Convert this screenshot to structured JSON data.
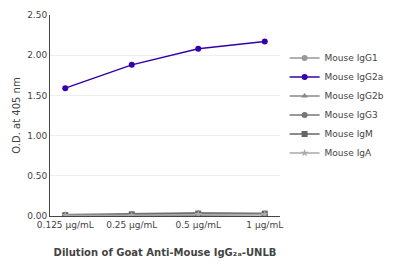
{
  "chart_data": {
    "type": "line",
    "xlabel": "Dilution of Goat Anti-Mouse IgG₂ₐ-UNLB",
    "ylabel": "O.D. at 405 nm",
    "categories": [
      "0.125 μg/mL",
      "0.25 μg/mL",
      "0.5 μg/mL",
      "1 μg/mL"
    ],
    "series": [
      {
        "name": "Mouse IgG1",
        "color": "#999999",
        "marker": "circle",
        "values": [
          0.01,
          0.01,
          0.01,
          0.02
        ]
      },
      {
        "name": "Mouse IgG2a",
        "color": "#3300aa",
        "marker": "circle",
        "values": [
          1.59,
          1.88,
          2.08,
          2.17
        ]
      },
      {
        "name": "Mouse IgG2b",
        "color": "#888888",
        "marker": "triangle-up",
        "values": [
          0.02,
          0.03,
          0.04,
          0.03
        ]
      },
      {
        "name": "Mouse IgG3",
        "color": "#777777",
        "marker": "circle",
        "values": [
          0.01,
          0.02,
          0.02,
          0.02
        ]
      },
      {
        "name": "Mouse IgM",
        "color": "#666666",
        "marker": "square",
        "values": [
          0.01,
          0.02,
          0.03,
          0.03
        ]
      },
      {
        "name": "Mouse IgA",
        "color": "#aaaaaa",
        "marker": "star",
        "values": [
          0.01,
          0.01,
          0.02,
          0.02
        ]
      }
    ],
    "ylim": [
      0.0,
      2.5
    ],
    "yticks": [
      {
        "value": 0.0,
        "label": "0.00"
      },
      {
        "value": 0.5,
        "label": "0.50"
      },
      {
        "value": 1.0,
        "label": "1.00"
      },
      {
        "value": 1.5,
        "label": "1.50"
      },
      {
        "value": 2.0,
        "label": "2.00"
      },
      {
        "value": 2.5,
        "label": "2.50"
      }
    ],
    "grid": true,
    "legend": "right"
  }
}
